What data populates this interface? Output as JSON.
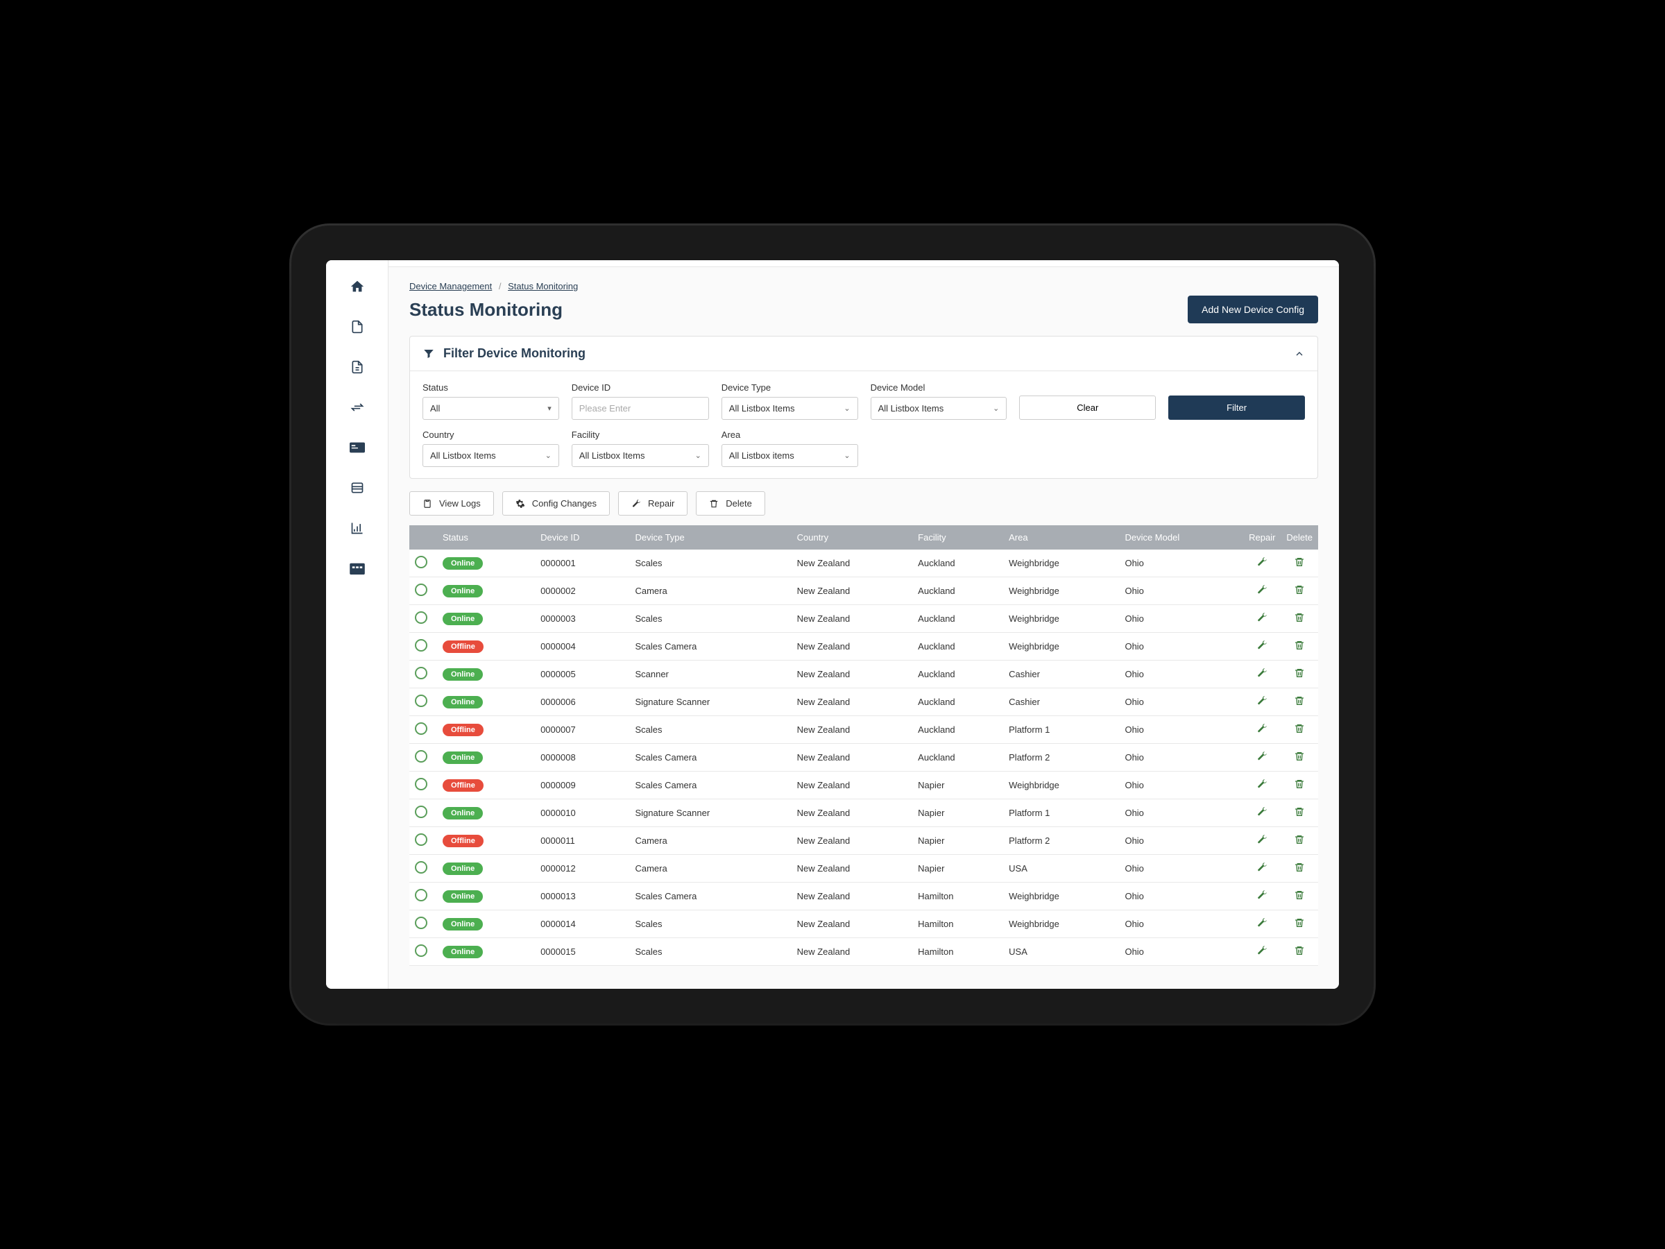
{
  "breadcrumb": {
    "parent": "Device Management",
    "current": "Status Monitoring"
  },
  "page": {
    "title": "Status Monitoring",
    "add_button": "Add New Device Config"
  },
  "filter": {
    "title": "Filter Device Monitoring",
    "status_label": "Status",
    "status_value": "All",
    "device_id_label": "Device ID",
    "device_id_placeholder": "Please Enter",
    "device_type_label": "Device Type",
    "device_type_value": "All Listbox Items",
    "device_model_label": "Device  Model",
    "device_model_value": "All Listbox Items",
    "country_label": "Country",
    "country_value": "All Listbox Items",
    "facility_label": "Facility",
    "facility_value": "All Listbox Items",
    "area_label": "Area",
    "area_value": "All Listbox items",
    "clear_button": "Clear",
    "filter_button": "Filter"
  },
  "actions": {
    "view_logs": "View Logs",
    "config_changes": "Config Changes",
    "repair": "Repair",
    "delete": "Delete"
  },
  "table": {
    "columns": [
      "",
      "Status",
      "Device ID",
      "Device Type",
      "Country",
      "Facility",
      "Area",
      "Device Model",
      "Repair",
      "Delete"
    ],
    "rows": [
      {
        "status": "Online",
        "id": "0000001",
        "type": "Scales",
        "country": "New Zealand",
        "facility": "Auckland",
        "area": "Weighbridge",
        "model": "Ohio"
      },
      {
        "status": "Online",
        "id": "0000002",
        "type": "Camera",
        "country": "New Zealand",
        "facility": "Auckland",
        "area": "Weighbridge",
        "model": "Ohio"
      },
      {
        "status": "Online",
        "id": "0000003",
        "type": "Scales",
        "country": "New Zealand",
        "facility": "Auckland",
        "area": "Weighbridge",
        "model": "Ohio"
      },
      {
        "status": "Offline",
        "id": "0000004",
        "type": "Scales Camera",
        "country": "New Zealand",
        "facility": "Auckland",
        "area": "Weighbridge",
        "model": "Ohio"
      },
      {
        "status": "Online",
        "id": "0000005",
        "type": "Scanner",
        "country": "New Zealand",
        "facility": "Auckland",
        "area": "Cashier",
        "model": "Ohio"
      },
      {
        "status": "Online",
        "id": "0000006",
        "type": "Signature Scanner",
        "country": "New Zealand",
        "facility": "Auckland",
        "area": "Cashier",
        "model": "Ohio"
      },
      {
        "status": "Offline",
        "id": "0000007",
        "type": "Scales",
        "country": "New Zealand",
        "facility": "Auckland",
        "area": "Platform 1",
        "model": "Ohio"
      },
      {
        "status": "Online",
        "id": "0000008",
        "type": "Scales Camera",
        "country": "New Zealand",
        "facility": "Auckland",
        "area": "Platform 2",
        "model": "Ohio"
      },
      {
        "status": "Offline",
        "id": "0000009",
        "type": "Scales Camera",
        "country": "New Zealand",
        "facility": "Napier",
        "area": "Weighbridge",
        "model": "Ohio"
      },
      {
        "status": "Online",
        "id": "0000010",
        "type": "Signature Scanner",
        "country": "New Zealand",
        "facility": "Napier",
        "area": "Platform 1",
        "model": "Ohio"
      },
      {
        "status": "Offline",
        "id": "0000011",
        "type": "Camera",
        "country": "New Zealand",
        "facility": "Napier",
        "area": "Platform 2",
        "model": "Ohio"
      },
      {
        "status": "Online",
        "id": "0000012",
        "type": "Camera",
        "country": "New Zealand",
        "facility": "Napier",
        "area": "USA",
        "model": "Ohio"
      },
      {
        "status": "Online",
        "id": "0000013",
        "type": "Scales Camera",
        "country": "New Zealand",
        "facility": "Hamilton",
        "area": "Weighbridge",
        "model": "Ohio"
      },
      {
        "status": "Online",
        "id": "0000014",
        "type": "Scales",
        "country": "New Zealand",
        "facility": "Hamilton",
        "area": "Weighbridge",
        "model": "Ohio"
      },
      {
        "status": "Online",
        "id": "0000015",
        "type": "Scales",
        "country": "New Zealand",
        "facility": "Hamilton",
        "area": "USA",
        "model": "Ohio"
      }
    ]
  },
  "colors": {
    "primary": "#1f3a56",
    "online": "#4caf50",
    "offline": "#e74c3c",
    "table_header": "#a8adb3",
    "icon_green": "#3a7a3a"
  }
}
